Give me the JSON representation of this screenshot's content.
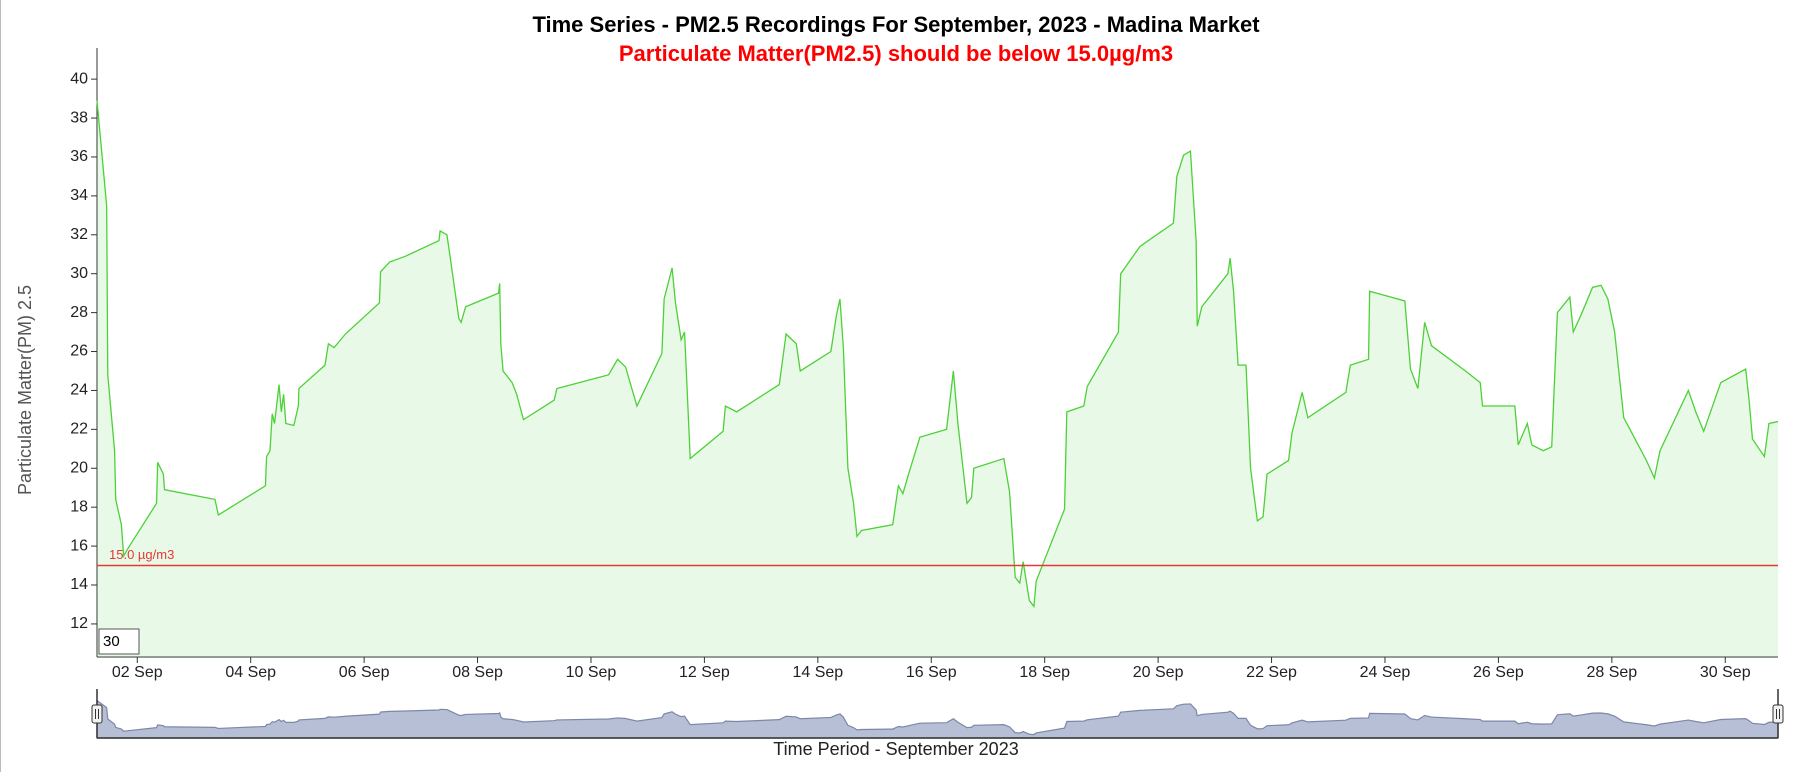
{
  "chart_data": {
    "type": "area",
    "title": "Time Series - PM2.5 Recordings For September, 2023 - Madina Market",
    "subtitle": "Particulate Matter(PM2.5) should be below 15.0µg/m3",
    "y_label": "Particulate Matter(PM) 2.5",
    "x_label": "Time Period - September 2023",
    "range_box": "30",
    "threshold": {
      "value": 15,
      "label": "15.0 µg/m3"
    },
    "color": "#4cd137",
    "threshold_color": "#e53935",
    "xlim": [
      1.29,
      30.93
    ],
    "ylim": [
      10.3,
      41.6
    ],
    "yticks": [
      12,
      14,
      16,
      18,
      20,
      22,
      24,
      26,
      28,
      30,
      32,
      34,
      36,
      38,
      40
    ],
    "xticks": [
      {
        "value": 2,
        "label": "02 Sep"
      },
      {
        "value": 4,
        "label": "04 Sep"
      },
      {
        "value": 6,
        "label": "06 Sep"
      },
      {
        "value": 8,
        "label": "08 Sep"
      },
      {
        "value": 10,
        "label": "10 Sep"
      },
      {
        "value": 12,
        "label": "12 Sep"
      },
      {
        "value": 14,
        "label": "14 Sep"
      },
      {
        "value": 16,
        "label": "16 Sep"
      },
      {
        "value": 18,
        "label": "18 Sep"
      },
      {
        "value": 20,
        "label": "20 Sep"
      },
      {
        "value": 22,
        "label": "22 Sep"
      },
      {
        "value": 24,
        "label": "24 Sep"
      },
      {
        "value": 26,
        "label": "26 Sep"
      },
      {
        "value": 28,
        "label": "28 Sep"
      },
      {
        "value": 30,
        "label": "30 Sep"
      }
    ],
    "x": [
      1.29,
      1.46,
      1.48,
      1.6,
      1.62,
      1.72,
      1.76,
      1.84,
      2.34,
      2.36,
      2.46,
      2.48,
      3.37,
      3.43,
      4.26,
      4.28,
      4.34,
      4.38,
      4.42,
      4.5,
      4.54,
      4.58,
      4.62,
      4.76,
      4.84,
      4.85,
      5.31,
      5.37,
      5.47,
      5.67,
      6.27,
      6.29,
      6.45,
      6.73,
      7.32,
      7.34,
      7.46,
      7.52,
      7.67,
      7.71,
      7.79,
      8.37,
      8.39,
      8.41,
      8.45,
      8.61,
      8.69,
      8.81,
      9.35,
      9.4,
      10.31,
      10.47,
      10.61,
      10.81,
      11.25,
      11.29,
      11.43,
      11.49,
      11.59,
      11.65,
      11.75,
      12.33,
      12.37,
      12.57,
      13.32,
      13.44,
      13.62,
      13.69,
      14.23,
      14.33,
      14.39,
      14.45,
      14.53,
      14.63,
      14.69,
      14.77,
      15.32,
      15.42,
      15.5,
      15.6,
      15.8,
      16.27,
      16.39,
      16.47,
      16.63,
      16.71,
      16.75,
      17.28,
      17.38,
      17.48,
      17.56,
      17.62,
      17.73,
      17.81,
      17.85,
      18.35,
      18.39,
      18.69,
      18.75,
      19.3,
      19.34,
      19.68,
      20.27,
      20.33,
      20.45,
      20.57,
      20.67,
      20.69,
      20.77,
      21.23,
      21.27,
      21.33,
      21.41,
      21.55,
      21.63,
      21.75,
      21.85,
      21.92,
      22.3,
      22.36,
      22.54,
      22.64,
      23.31,
      23.39,
      23.71,
      23.73,
      24.35,
      24.45,
      24.58,
      24.7,
      24.82,
      25.42,
      25.68,
      25.72,
      26.29,
      26.35,
      26.51,
      26.59,
      26.79,
      26.94,
      27.04,
      27.26,
      27.32,
      27.46,
      27.66,
      27.81,
      27.93,
      28.05,
      28.21,
      28.41,
      28.61,
      28.75,
      28.85,
      29.35,
      29.48,
      29.62,
      29.92,
      30.36,
      30.42,
      30.48,
      30.69,
      30.77,
      30.93
    ],
    "values": [
      38.9,
      33.5,
      24.8,
      20.9,
      18.4,
      17.1,
      15.5,
      15.9,
      18.2,
      20.3,
      19.7,
      18.9,
      18.4,
      17.6,
      19.1,
      20.6,
      20.9,
      22.8,
      22.3,
      24.3,
      22.9,
      23.8,
      22.3,
      22.2,
      23.2,
      24.1,
      25.3,
      26.4,
      26.2,
      26.9,
      28.5,
      30.1,
      30.6,
      30.9,
      31.7,
      32.2,
      32.0,
      30.8,
      27.7,
      27.5,
      28.3,
      29.0,
      29.5,
      26.4,
      25.0,
      24.4,
      23.8,
      22.5,
      23.5,
      24.1,
      24.8,
      25.6,
      25.2,
      23.2,
      25.9,
      28.7,
      30.3,
      28.5,
      26.6,
      27.0,
      20.5,
      21.9,
      23.2,
      22.9,
      24.3,
      26.9,
      26.4,
      25.0,
      26.0,
      27.9,
      28.7,
      26.2,
      20.0,
      18.2,
      16.5,
      16.8,
      17.1,
      19.1,
      18.7,
      19.7,
      21.6,
      22.0,
      25.0,
      22.3,
      18.2,
      18.5,
      20.0,
      20.5,
      18.8,
      14.4,
      14.1,
      15.2,
      13.2,
      12.9,
      14.2,
      17.9,
      22.9,
      23.2,
      24.2,
      27.0,
      30.0,
      31.4,
      32.6,
      35.0,
      36.1,
      36.3,
      31.7,
      27.3,
      28.3,
      30.0,
      30.8,
      29.1,
      25.3,
      25.3,
      20.0,
      17.3,
      17.5,
      19.7,
      20.4,
      21.8,
      23.9,
      22.6,
      23.9,
      25.3,
      25.6,
      29.1,
      28.6,
      25.1,
      24.1,
      27.5,
      26.3,
      25.0,
      24.4,
      23.2,
      23.2,
      21.2,
      22.3,
      21.2,
      20.9,
      21.1,
      28.0,
      28.8,
      27.0,
      27.9,
      29.3,
      29.4,
      28.7,
      27.0,
      22.6,
      21.5,
      20.4,
      19.5,
      20.9,
      24.0,
      22.9,
      21.9,
      24.4,
      25.1,
      23.5,
      21.5,
      20.6,
      22.3,
      22.4
    ]
  }
}
